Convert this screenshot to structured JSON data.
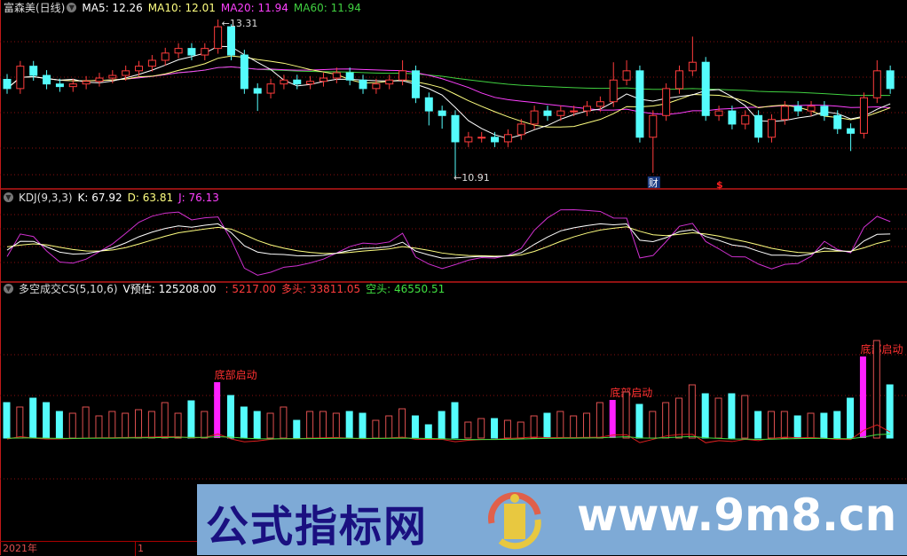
{
  "main_header": {
    "stock": "富森美(日线)",
    "ma5": "MA5: 12.26",
    "ma10": "MA10: 12.01",
    "ma20": "MA20: 11.94",
    "ma60": "MA60: 11.94"
  },
  "kdj_header": {
    "name": "KDJ(9,3,3)",
    "k": "K: 67.92",
    "d": "D: 63.81",
    "j": "J: 76.13"
  },
  "cs_header": {
    "name": "多空成交CS(5,10,6)",
    "vest": "V预估: 125208.00",
    "v1": ": 5217.00",
    "long": "多头: 33811.05",
    "short": "空头: 46550.51"
  },
  "annotations": {
    "high": "13.31",
    "low": "10.91",
    "finance_marker": "财",
    "dividend_marker": "$",
    "signal": "底部启动"
  },
  "time_axis": {
    "year": "2021年",
    "month": "1"
  },
  "watermark": {
    "name": "公式指标网",
    "url": "www.9m8.cn"
  },
  "colors": {
    "up": "#ff3c3c",
    "down": "#54fcfc",
    "ma5": "#ffffff",
    "ma10": "#ffff80",
    "ma20": "#ff40ff",
    "ma60": "#40d040",
    "signal": "#ff20ff",
    "grid": "#8a1010"
  },
  "chart_data": {
    "type": "candlestick",
    "panes": [
      "price",
      "KDJ",
      "CS volume"
    ],
    "open": [
      12.4,
      12.26,
      12.6,
      12.46,
      12.33,
      12.29,
      12.33,
      12.37,
      12.42,
      12.46,
      12.53,
      12.6,
      12.69,
      12.8,
      12.87,
      12.77,
      12.87,
      13.2,
      12.77,
      12.26,
      12.19,
      12.33,
      12.39,
      12.33,
      12.37,
      12.42,
      12.5,
      12.39,
      12.26,
      12.33,
      12.39,
      12.53,
      12.12,
      11.92,
      11.85,
      11.45,
      11.52,
      11.52,
      11.45,
      11.56,
      11.72,
      11.92,
      11.85,
      11.92,
      11.92,
      11.99,
      12.06,
      12.39,
      12.53,
      11.52,
      11.85,
      12.26,
      12.53,
      12.66,
      11.85,
      11.92,
      11.72,
      11.85,
      11.52,
      11.79,
      11.99,
      11.92,
      11.99,
      11.85,
      11.65,
      11.58,
      12.12,
      12.53
    ],
    "high": [
      12.48,
      12.68,
      12.68,
      12.54,
      12.41,
      12.41,
      12.45,
      12.5,
      12.54,
      12.61,
      12.68,
      12.77,
      12.88,
      12.95,
      12.95,
      12.95,
      13.31,
      13.24,
      12.85,
      12.34,
      12.41,
      12.47,
      12.47,
      12.45,
      12.5,
      12.58,
      12.58,
      12.47,
      12.41,
      12.47,
      12.69,
      12.61,
      12.2,
      12.0,
      11.93,
      11.6,
      11.6,
      11.6,
      11.64,
      11.8,
      12.0,
      12.0,
      12.0,
      12.0,
      12.07,
      12.14,
      12.66,
      12.69,
      12.61,
      11.93,
      12.34,
      12.61,
      13.05,
      12.74,
      12.0,
      12.0,
      11.93,
      11.93,
      11.87,
      12.07,
      12.07,
      12.07,
      12.07,
      11.93,
      11.73,
      12.2,
      12.69,
      12.61
    ],
    "low": [
      12.18,
      12.18,
      12.38,
      12.25,
      12.21,
      12.21,
      12.25,
      12.29,
      12.34,
      12.38,
      12.45,
      12.52,
      12.61,
      12.72,
      12.69,
      12.69,
      12.79,
      12.69,
      12.18,
      11.92,
      12.11,
      12.25,
      12.25,
      12.25,
      12.29,
      12.34,
      12.31,
      12.18,
      12.18,
      12.25,
      12.31,
      12.04,
      11.7,
      11.65,
      10.91,
      11.37,
      11.44,
      11.37,
      11.37,
      11.48,
      11.64,
      11.77,
      11.77,
      11.84,
      11.84,
      11.91,
      11.98,
      12.31,
      11.44,
      10.98,
      11.77,
      12.18,
      12.45,
      11.77,
      11.77,
      11.64,
      11.64,
      11.44,
      11.44,
      11.71,
      11.84,
      11.84,
      11.77,
      11.57,
      11.31,
      11.5,
      12.04,
      12.18
    ],
    "close": [
      12.26,
      12.6,
      12.46,
      12.33,
      12.29,
      12.33,
      12.37,
      12.42,
      12.46,
      12.53,
      12.6,
      12.69,
      12.8,
      12.87,
      12.77,
      12.87,
      13.2,
      12.77,
      12.26,
      12.19,
      12.33,
      12.39,
      12.33,
      12.37,
      12.42,
      12.5,
      12.39,
      12.26,
      12.33,
      12.39,
      12.53,
      12.12,
      11.92,
      11.85,
      11.45,
      11.52,
      11.52,
      11.45,
      11.56,
      11.72,
      11.92,
      11.85,
      11.92,
      11.92,
      11.99,
      12.06,
      12.39,
      12.53,
      11.52,
      11.85,
      12.26,
      12.53,
      12.66,
      11.85,
      11.92,
      11.72,
      11.85,
      11.52,
      11.79,
      11.99,
      11.92,
      11.99,
      11.85,
      11.65,
      11.58,
      12.12,
      12.53,
      12.26
    ],
    "volume": [
      40,
      35,
      45,
      40,
      30,
      28,
      35,
      25,
      30,
      28,
      32,
      30,
      40,
      28,
      42,
      30,
      63,
      48,
      35,
      30,
      28,
      35,
      20,
      30,
      30,
      28,
      30,
      28,
      20,
      25,
      33,
      25,
      15,
      30,
      40,
      18,
      22,
      22,
      20,
      18,
      25,
      28,
      30,
      25,
      28,
      40,
      43,
      52,
      38,
      30,
      40,
      45,
      60,
      50,
      45,
      50,
      48,
      30,
      30,
      30,
      25,
      28,
      28,
      30,
      45,
      92,
      110,
      60
    ],
    "signal_bars": [
      16,
      46,
      65
    ],
    "finance_marker_bar": 49,
    "dividend_marker_bar": 54,
    "price_range": [
      10.91,
      13.31
    ]
  }
}
